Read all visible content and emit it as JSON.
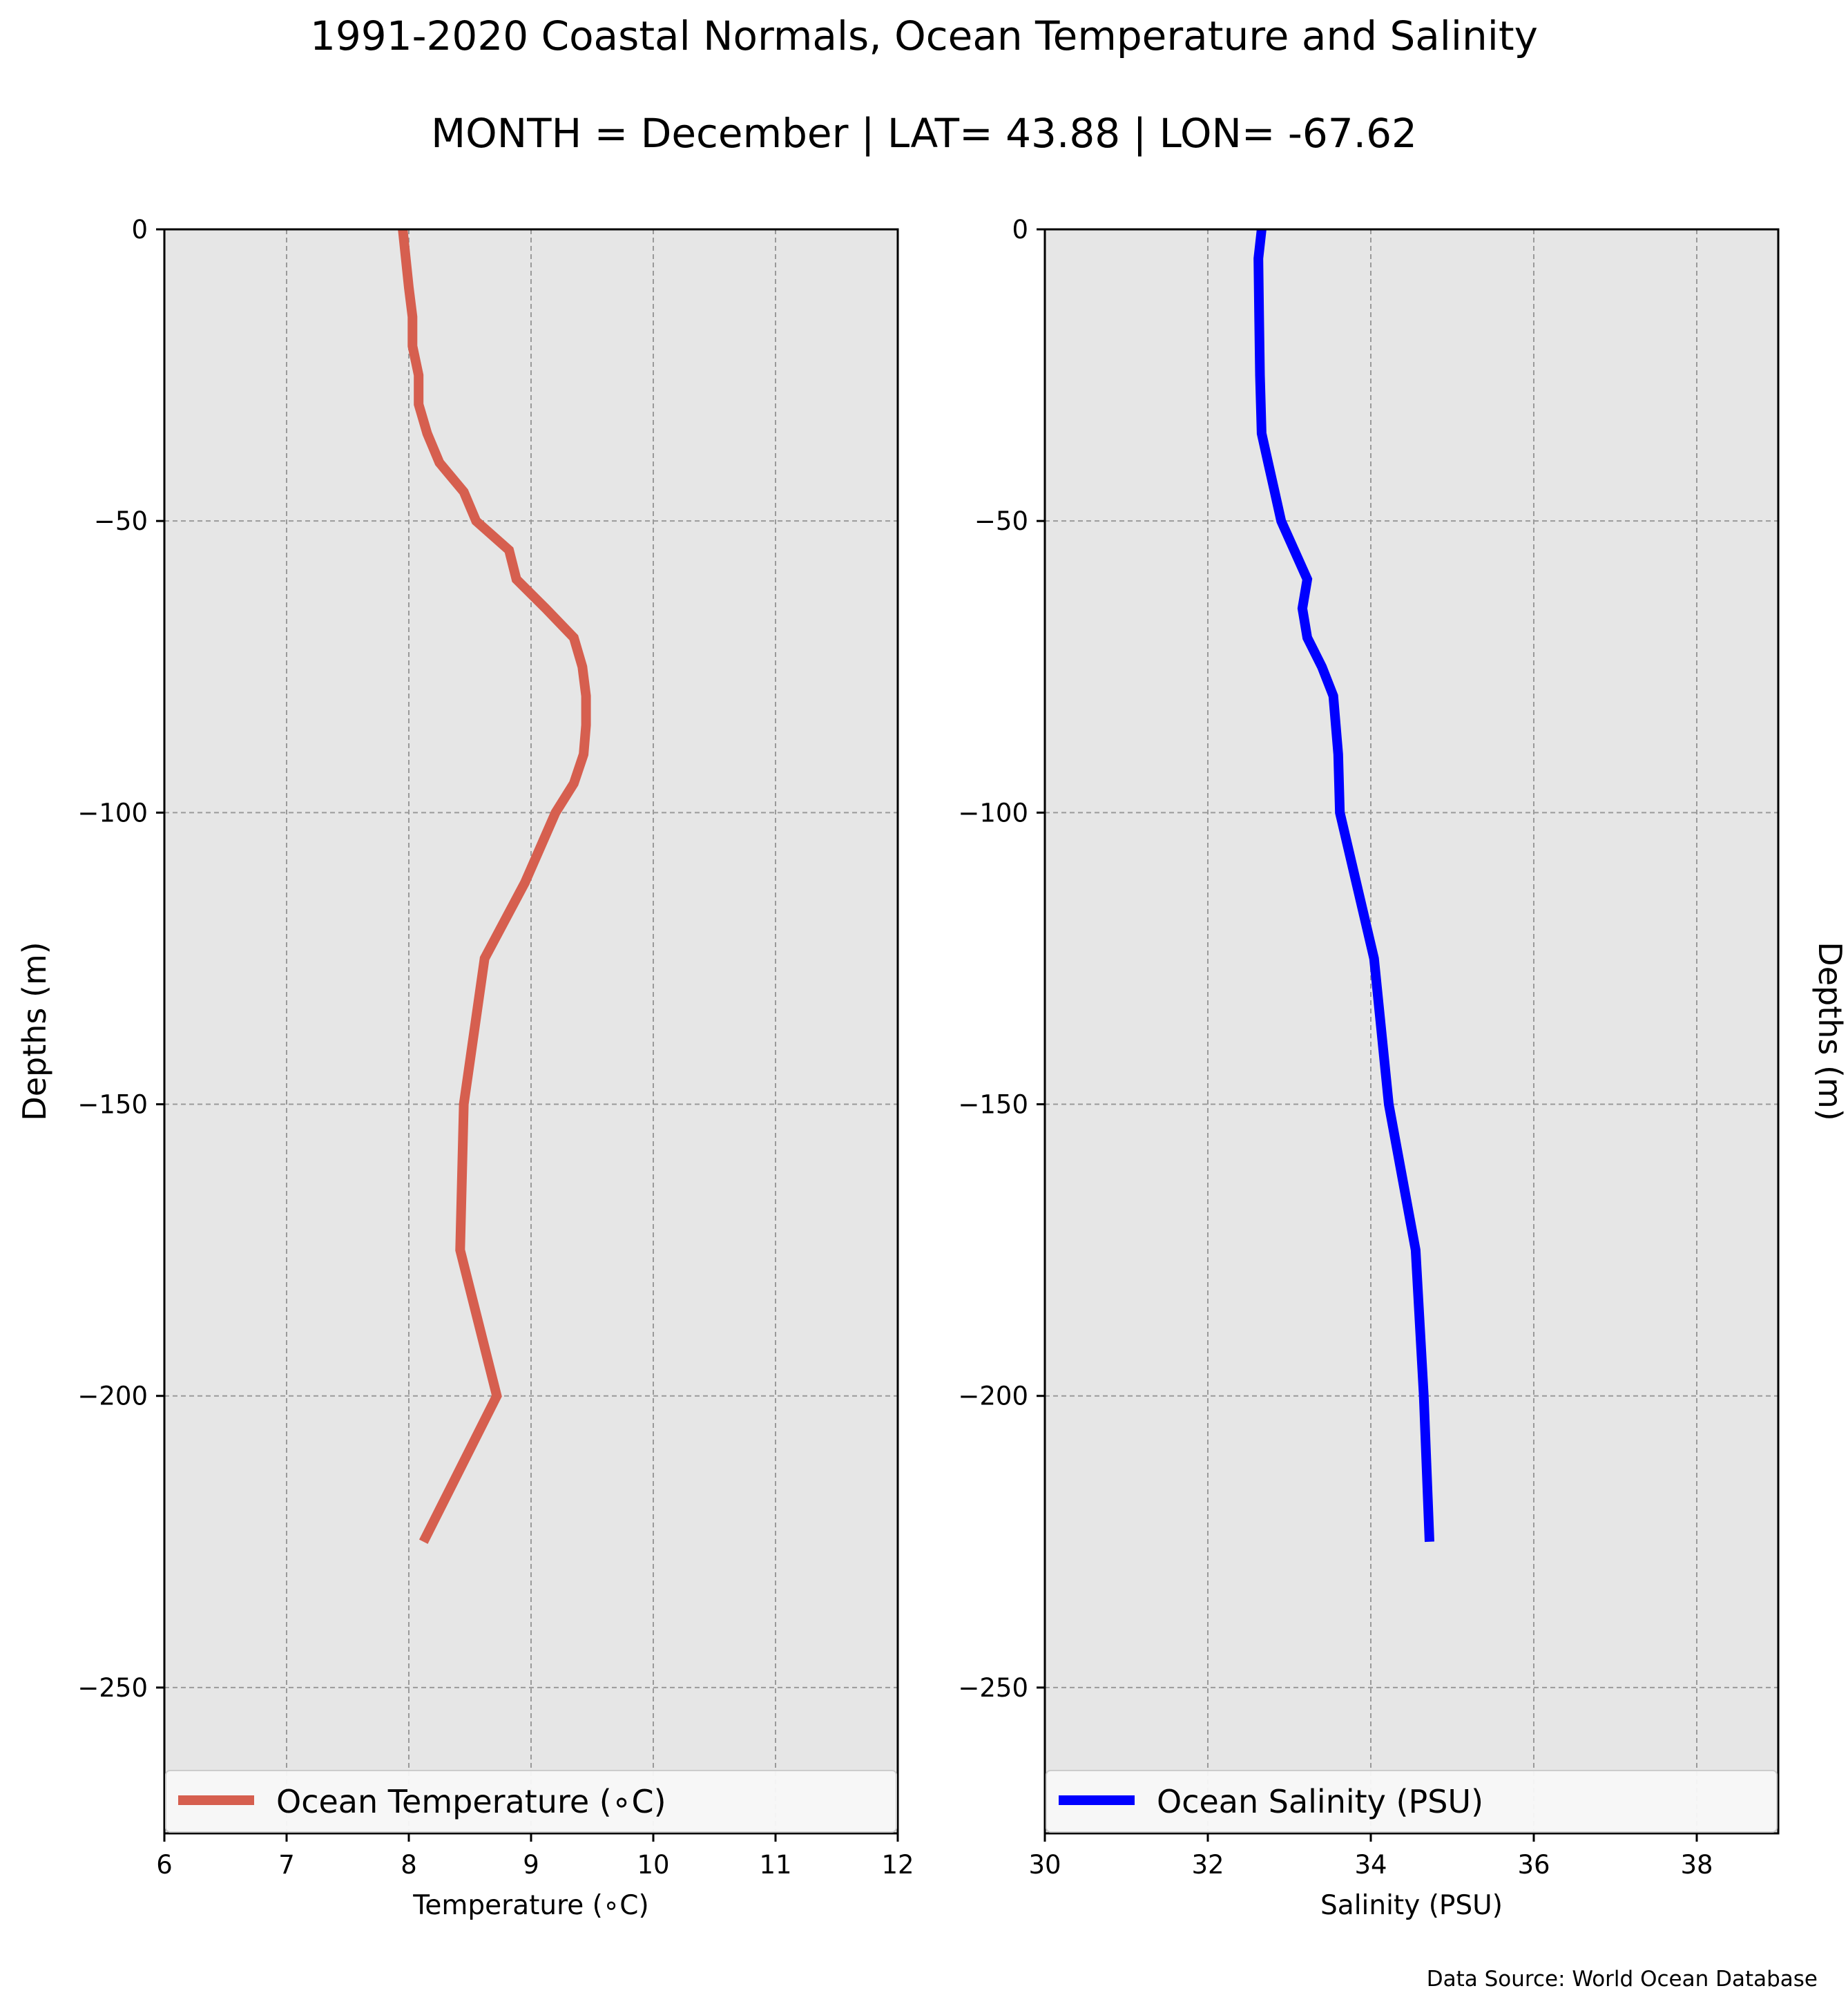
{
  "figure": {
    "title": "1991-2020 Coastal Normals, Ocean Temperature and Salinity",
    "subtitle": "MONTH = December | LAT= 43.88 | LON= -67.62",
    "source": "Data Source: World Ocean Database"
  },
  "chart_data": [
    {
      "type": "line",
      "xlabel": "Temperature (∘C)",
      "ylabel": "Depths (m)",
      "xlim": [
        6,
        12
      ],
      "ylim": [
        -275,
        0
      ],
      "xticks": [
        6,
        7,
        8,
        9,
        10,
        11,
        12
      ],
      "xtick_labels": [
        "6",
        "7",
        "8",
        "9",
        "10",
        "11",
        "12"
      ],
      "yticks": [
        0,
        -50,
        -100,
        -150,
        -200,
        -250
      ],
      "ytick_labels": [
        "0",
        "−50",
        "−100",
        "−150",
        "−200",
        "−250"
      ],
      "grid": true,
      "background": "#e6e6e6",
      "legend_position": "bottom",
      "series": [
        {
          "name": "Ocean Temperature (∘C)",
          "color": "#d65f4f",
          "x": [
            7.95,
            8.0,
            8.03,
            8.03,
            8.08,
            8.08,
            8.15,
            8.25,
            8.45,
            8.55,
            8.82,
            8.88,
            9.12,
            9.35,
            9.42,
            9.45,
            9.45,
            9.43,
            9.35,
            9.2,
            8.95,
            8.62,
            8.45,
            8.42,
            8.72,
            8.12
          ],
          "y": [
            0,
            -10,
            -15,
            -20,
            -25,
            -30,
            -35,
            -40,
            -45,
            -50,
            -55,
            -60,
            -65,
            -70,
            -75,
            -80,
            -85,
            -90,
            -95,
            -100,
            -112,
            -125,
            -150,
            -175,
            -200,
            -225
          ]
        }
      ]
    },
    {
      "type": "line",
      "xlabel": "Salinity (PSU)",
      "ylabel": "Depths (m)",
      "xlim": [
        30,
        39
      ],
      "ylim": [
        -275,
        0
      ],
      "xticks": [
        30,
        32,
        34,
        36,
        38
      ],
      "xtick_labels": [
        "30",
        "32",
        "34",
        "36",
        "38"
      ],
      "yticks": [
        0,
        -50,
        -100,
        -150,
        -200,
        -250
      ],
      "ytick_labels": [
        "0",
        "−50",
        "−100",
        "−150",
        "−200",
        "−250"
      ],
      "grid": true,
      "background": "#e6e6e6",
      "legend_position": "bottom",
      "series": [
        {
          "name": "Ocean Salinity (PSU)",
          "color": "#0000ff",
          "x": [
            32.66,
            32.62,
            32.63,
            32.64,
            32.65,
            32.66,
            32.74,
            32.82,
            32.9,
            33.22,
            33.16,
            33.22,
            33.4,
            33.54,
            33.6,
            33.62,
            34.04,
            34.22,
            34.55,
            34.65,
            34.72
          ],
          "y": [
            0,
            -5,
            -15,
            -25,
            -30,
            -35,
            -40,
            -45,
            -50,
            -60,
            -65,
            -70,
            -75,
            -80,
            -90,
            -100,
            -125,
            -150,
            -175,
            -200,
            -225
          ]
        }
      ]
    }
  ]
}
